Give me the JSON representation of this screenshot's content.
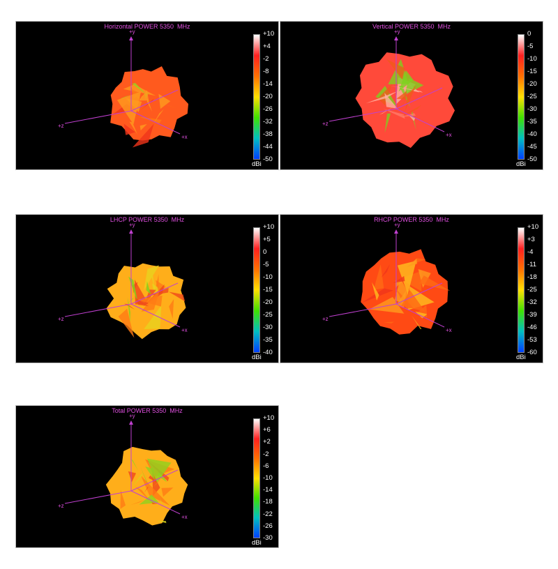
{
  "panels": [
    {
      "title": "Horizontal POWER 5350  MHz",
      "ticks": [
        "+10",
        "+4",
        "-2",
        "-8",
        "-14",
        "-20",
        "-26",
        "-32",
        "-38",
        "-44",
        "-50"
      ],
      "unit": "dBi",
      "axes": {
        "y": "+y",
        "z": "+z",
        "x": "+x"
      },
      "blob_colors": [
        "#ff5a1e",
        "#ff7a14",
        "#f0351a",
        "#ff9b1e",
        "#9bd21e"
      ]
    },
    {
      "title": "Vertical POWER 5350  MHz",
      "ticks": [
        "0",
        "-5",
        "-10",
        "-15",
        "-20",
        "-25",
        "-30",
        "-35",
        "-40",
        "-45",
        "-50"
      ],
      "unit": "dBi",
      "axes": {
        "y": "+y",
        "z": "+z",
        "x": "+x"
      },
      "blob_colors": [
        "#ff4a3a",
        "#ff7a6a",
        "#f05a1a",
        "#ffb0a0",
        "#7dd21e"
      ]
    },
    {
      "title": "LHCP POWER 5350  MHz",
      "ticks": [
        "+10",
        "+5",
        "0",
        "-5",
        "-10",
        "-15",
        "-20",
        "-25",
        "-30",
        "-35",
        "-40"
      ],
      "unit": "dBi",
      "axes": {
        "y": "+y",
        "z": "+z",
        "x": "+x"
      },
      "blob_colors": [
        "#ffae1a",
        "#ff7a14",
        "#f0481a",
        "#e8d21e",
        "#7dd21e"
      ]
    },
    {
      "title": "RHCP POWER 5350  MHz",
      "ticks": [
        "+10",
        "+3",
        "-4",
        "-11",
        "-18",
        "-25",
        "-32",
        "-39",
        "-46",
        "-53",
        "-60"
      ],
      "unit": "dBi",
      "axes": {
        "y": "+y",
        "z": "+z",
        "x": "+x"
      },
      "blob_colors": [
        "#ff4a14",
        "#ff6a14",
        "#f0351a",
        "#ff9b1e",
        "#ffbe1e"
      ]
    },
    {
      "title": "Total POWER 5350  MHz",
      "ticks": [
        "+10",
        "+6",
        "+2",
        "-2",
        "-6",
        "-10",
        "-14",
        "-18",
        "-22",
        "-26",
        "-30"
      ],
      "unit": "dBi",
      "axes": {
        "y": "+y",
        "z": "+z",
        "x": "+x"
      },
      "blob_colors": [
        "#ffae1a",
        "#ff7a14",
        "#f0481a",
        "#d8d21e",
        "#8ed21e"
      ]
    }
  ],
  "colormap": [
    "#ffffff",
    "#ff2020",
    "#ff7000",
    "#ffe000",
    "#40e000",
    "#00c0c0",
    "#0040ff"
  ]
}
